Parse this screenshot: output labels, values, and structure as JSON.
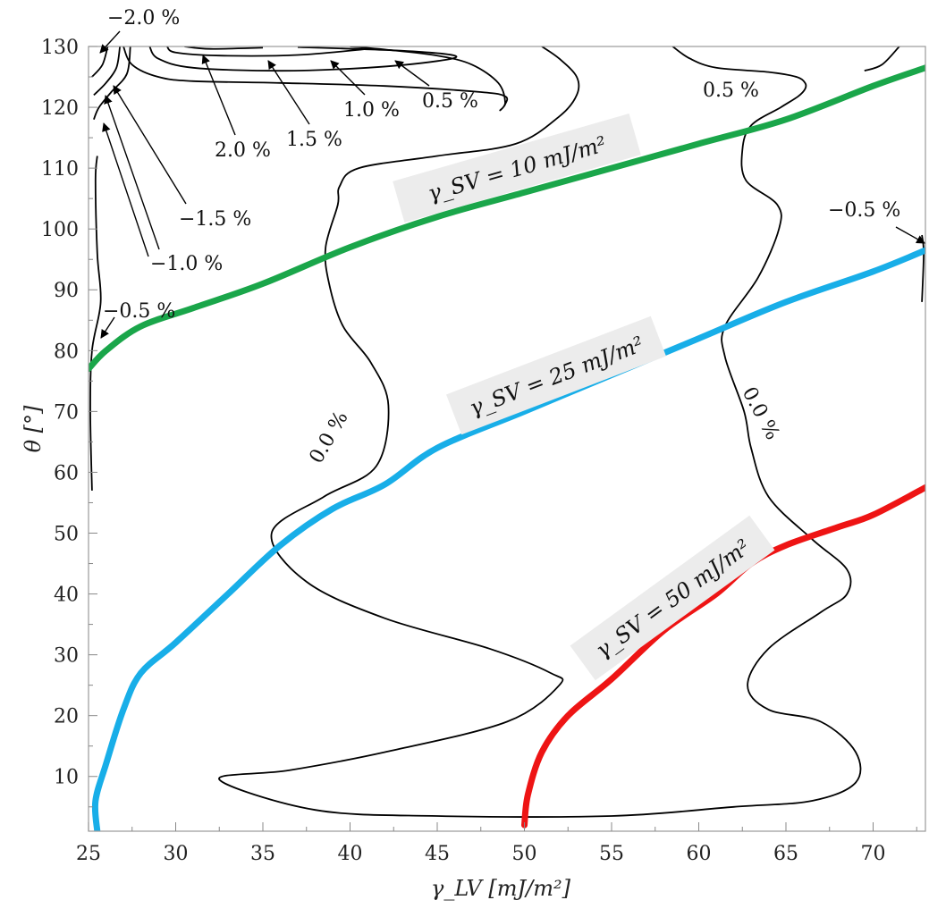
{
  "chart_data": {
    "type": "line",
    "xlabel": "γ_LV [mJ/m²]",
    "ylabel": "θ [°]",
    "xlim": [
      25,
      73
    ],
    "ylim": [
      1,
      130
    ],
    "xticks": [
      "25",
      "30",
      "35",
      "40",
      "45",
      "50",
      "55",
      "60",
      "65",
      "70"
    ],
    "yticks": [
      "10",
      "20",
      "30",
      "40",
      "50",
      "60",
      "70",
      "80",
      "90",
      "100",
      "110",
      "120",
      "130"
    ],
    "series": [
      {
        "name": "γ_SV = 10 mJ/m²",
        "color": "#1aa64a",
        "points": [
          [
            25,
            77
          ],
          [
            26,
            80
          ],
          [
            28,
            84
          ],
          [
            31,
            87
          ],
          [
            35,
            91
          ],
          [
            40,
            97
          ],
          [
            45,
            102
          ],
          [
            50,
            106
          ],
          [
            55,
            110
          ],
          [
            60,
            114
          ],
          [
            65,
            118
          ],
          [
            70,
            123.5
          ],
          [
            73,
            126.5
          ]
        ]
      },
      {
        "name": "γ_SV = 25 mJ/m²",
        "color": "#18aee8",
        "points": [
          [
            25.5,
            1
          ],
          [
            25.4,
            6
          ],
          [
            26,
            12
          ],
          [
            27,
            21
          ],
          [
            28,
            27
          ],
          [
            30,
            32
          ],
          [
            33,
            40
          ],
          [
            36,
            48
          ],
          [
            39,
            54
          ],
          [
            42,
            58
          ],
          [
            45,
            64
          ],
          [
            50,
            70
          ],
          [
            55,
            76
          ],
          [
            60,
            82
          ],
          [
            65,
            88
          ],
          [
            70,
            93
          ],
          [
            73,
            96.5
          ]
        ]
      },
      {
        "name": "γ_SV = 50 mJ/m²",
        "color": "#ee1414",
        "points": [
          [
            50,
            2
          ],
          [
            50.2,
            7
          ],
          [
            51,
            14
          ],
          [
            52.5,
            20
          ],
          [
            55,
            26
          ],
          [
            58,
            34
          ],
          [
            61,
            40
          ],
          [
            63,
            45
          ],
          [
            65,
            48
          ],
          [
            68,
            51
          ],
          [
            70,
            53
          ],
          [
            73,
            57.5
          ]
        ]
      }
    ],
    "contours": [
      {
        "label": "0.0 %",
        "points": [
          [
            58.5,
            130
          ],
          [
            59.5,
            128
          ],
          [
            61,
            126.5
          ],
          [
            64,
            125.8
          ],
          [
            65.6,
            125
          ],
          [
            66.1,
            124
          ],
          [
            66.1,
            123
          ],
          [
            65.7,
            121.8
          ],
          [
            64.7,
            120
          ],
          [
            63,
            117
          ],
          [
            62.5,
            113
          ],
          [
            62.7,
            108
          ],
          [
            64.5,
            104
          ],
          [
            64.6,
            100
          ],
          [
            63.4,
            92
          ],
          [
            61.5,
            84
          ],
          [
            61.5,
            79
          ],
          [
            62.6,
            70
          ],
          [
            63,
            64
          ],
          [
            64,
            56
          ],
          [
            66.5,
            49
          ],
          [
            68.5,
            44
          ],
          [
            68.5,
            40
          ],
          [
            67,
            37
          ],
          [
            64,
            31
          ],
          [
            62.8,
            25
          ],
          [
            64,
            21
          ],
          [
            67,
            19
          ],
          [
            69,
            14
          ],
          [
            69,
            9
          ],
          [
            66.5,
            6
          ],
          [
            62,
            5
          ],
          [
            55,
            3.5
          ],
          [
            45,
            3.5
          ],
          [
            38,
            4.5
          ],
          [
            32.5,
            9.5
          ],
          [
            36.5,
            11
          ],
          [
            42,
            14
          ],
          [
            49,
            19
          ],
          [
            52,
            25
          ],
          [
            51.5,
            27
          ],
          [
            48,
            31
          ],
          [
            42,
            36
          ],
          [
            37.5,
            42
          ],
          [
            35.5,
            50
          ],
          [
            38.5,
            56
          ],
          [
            41.5,
            61
          ],
          [
            42.2,
            71
          ],
          [
            41.2,
            78
          ],
          [
            39.6,
            84
          ],
          [
            38.8,
            91
          ],
          [
            38.6,
            97
          ],
          [
            39.3,
            104
          ],
          [
            39.4,
            107
          ],
          [
            40.5,
            110
          ],
          [
            45,
            112
          ],
          [
            49.5,
            114
          ],
          [
            52,
            118.5
          ],
          [
            53,
            122
          ],
          [
            53,
            125
          ],
          [
            52,
            128
          ],
          [
            51,
            130
          ]
        ]
      },
      {
        "label": "0.5 %",
        "points": [
          [
            27,
            130
          ],
          [
            27.5,
            127
          ],
          [
            29,
            125
          ],
          [
            31,
            124.3
          ],
          [
            36,
            124
          ],
          [
            42,
            123.5
          ],
          [
            47.5,
            122.5
          ],
          [
            48.9,
            121.8
          ],
          [
            48.9,
            120.5
          ],
          [
            48.6,
            119.5
          ],
          [
            48.9,
            120.8
          ],
          [
            48.5,
            124
          ],
          [
            47,
            127
          ],
          [
            45,
            128.5
          ],
          [
            42,
            129.5
          ],
          [
            40,
            130
          ]
        ]
      },
      {
        "label": "0.5 %",
        "points": [
          [
            71.5,
            130
          ],
          [
            70.5,
            127
          ],
          [
            69.5,
            126
          ]
        ]
      },
      {
        "label": "1.0 %",
        "points": [
          [
            28.5,
            130
          ],
          [
            29,
            128
          ],
          [
            31,
            126.5
          ],
          [
            36,
            126
          ],
          [
            41,
            126.5
          ],
          [
            45,
            127.6
          ],
          [
            46,
            128.5
          ],
          [
            43,
            129.3
          ],
          [
            37,
            129.9
          ]
        ]
      },
      {
        "label": "1.5 %",
        "points": [
          [
            29.5,
            130
          ],
          [
            30,
            129
          ],
          [
            32.5,
            128.5
          ],
          [
            37,
            128.6
          ],
          [
            41,
            129.6
          ]
        ]
      },
      {
        "label": "2.0 %",
        "points": [
          [
            30.5,
            130
          ],
          [
            32,
            129.6
          ],
          [
            35,
            129.8
          ]
        ]
      },
      {
        "label": "-0.5 %",
        "points": [
          [
            25.2,
            57
          ],
          [
            25.1,
            70
          ],
          [
            25.2,
            80
          ],
          [
            25.7,
            88
          ],
          [
            25.5,
            96
          ],
          [
            25.4,
            108
          ],
          [
            25.5,
            112
          ]
        ]
      },
      {
        "label": "-0.5 %",
        "points": [
          [
            72.8,
            99
          ],
          [
            72.9,
            96
          ],
          [
            72.8,
            88
          ]
        ]
      },
      {
        "label": "-1.0 %",
        "points": [
          [
            25.3,
            118
          ],
          [
            25.6,
            120
          ],
          [
            26.3,
            122.5
          ],
          [
            27.2,
            125.5
          ],
          [
            27.4,
            130
          ]
        ]
      },
      {
        "label": "-1.5 %",
        "points": [
          [
            25.3,
            122
          ],
          [
            26,
            124
          ],
          [
            26.6,
            126.5
          ],
          [
            26.8,
            130
          ]
        ]
      },
      {
        "label": "-2.0 %",
        "points": [
          [
            25.2,
            125
          ],
          [
            25.8,
            127
          ],
          [
            26.1,
            130
          ]
        ]
      }
    ],
    "contour_labels": [
      "0.0 %",
      "0.0 %",
      "0.5 %",
      "0.5 %",
      "1.0 %",
      "1.5 %",
      "2.0 %",
      "−0.5 %",
      "−0.5 %",
      "−1.0 %",
      "−1.5 %",
      "−2.0 %"
    ],
    "grid": false,
    "legend": "none"
  }
}
